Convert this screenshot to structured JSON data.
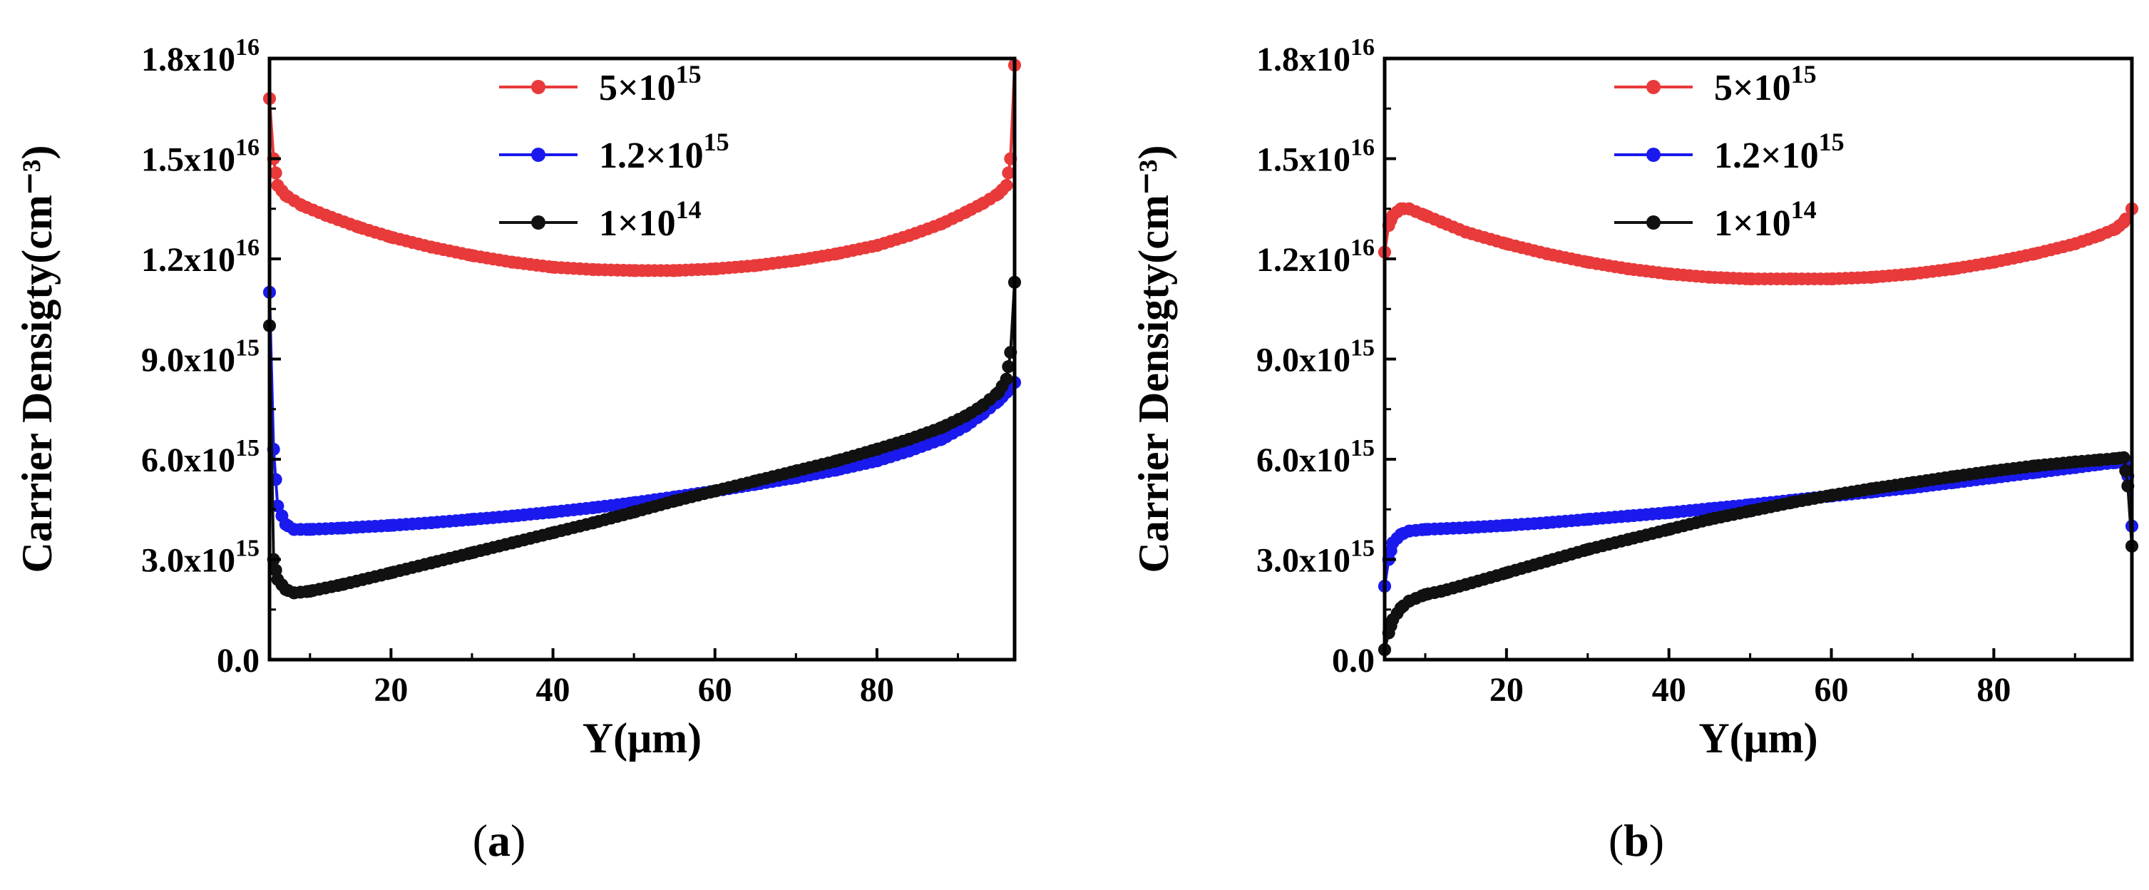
{
  "chart_data": [
    {
      "type": "scatter",
      "panel_label": "a",
      "xlabel": "Y(μm)",
      "ylabel": "Carrier Densigty(cm⁻³)",
      "xlim": [
        5,
        97
      ],
      "ylim": [
        0,
        1.8e+16
      ],
      "xticks": [
        20,
        40,
        60,
        80
      ],
      "yticks": [
        {
          "value": 0,
          "mant": "0.0",
          "exp": ""
        },
        {
          "value": 3000000000000000.0,
          "mant": "3.0x10",
          "exp": "15"
        },
        {
          "value": 6000000000000000.0,
          "mant": "6.0x10",
          "exp": "15"
        },
        {
          "value": 9000000000000000.0,
          "mant": "9.0x10",
          "exp": "15"
        },
        {
          "value": 1.2e+16,
          "mant": "1.2x10",
          "exp": "16"
        },
        {
          "value": 1.5e+16,
          "mant": "1.5x10",
          "exp": "16"
        },
        {
          "value": 1.8e+16,
          "mant": "1.8x10",
          "exp": "16"
        }
      ],
      "legend_position": "top-right",
      "series": [
        {
          "name": "5×10",
          "name_exp": "15",
          "color": "#e83a3a",
          "x": [
            5,
            5.5,
            6,
            7,
            9,
            12,
            16,
            20,
            25,
            30,
            35,
            40,
            45,
            50,
            55,
            60,
            65,
            70,
            75,
            80,
            84,
            88,
            91,
            93,
            95,
            96,
            96.5,
            97
          ],
          "y": [
            1.68e+16,
            1.5e+16,
            1.42e+16,
            1.39e+16,
            1.36e+16,
            1.33e+16,
            1.295e+16,
            1.265e+16,
            1.235e+16,
            1.21e+16,
            1.19e+16,
            1.175e+16,
            1.168e+16,
            1.165e+16,
            1.165e+16,
            1.17e+16,
            1.18e+16,
            1.195e+16,
            1.215e+16,
            1.24e+16,
            1.27e+16,
            1.305e+16,
            1.34e+16,
            1.365e+16,
            1.395e+16,
            1.42e+16,
            1.5e+16,
            1.78e+16
          ]
        },
        {
          "name": "1.2×10",
          "name_exp": "15",
          "color": "#1a1aee",
          "x": [
            5,
            5.5,
            6,
            7,
            8,
            10,
            14,
            20,
            25,
            30,
            35,
            40,
            45,
            50,
            55,
            60,
            65,
            70,
            75,
            80,
            84,
            88,
            91,
            93,
            95,
            96,
            97
          ],
          "y": [
            1.1e+16,
            6300000000000000.0,
            4600000000000000.0,
            4050000000000000.0,
            3900000000000000.0,
            3900000000000000.0,
            3940000000000000.0,
            4020000000000000.0,
            4100000000000000.0,
            4200000000000000.0,
            4300000000000000.0,
            4420000000000000.0,
            4550000000000000.0,
            4700000000000000.0,
            4870000000000000.0,
            5050000000000000.0,
            5250000000000000.0,
            5450000000000000.0,
            5680000000000000.0,
            5950000000000000.0,
            6250000000000000.0,
            6600000000000000.0,
            7000000000000000.0,
            7350000000000000.0,
            7750000000000000.0,
            8000000000000000.0,
            8300000000000000.0
          ]
        },
        {
          "name": "1×10",
          "name_exp": "14",
          "color": "#111111",
          "x": [
            5,
            5.5,
            6,
            7,
            8,
            10,
            14,
            20,
            25,
            30,
            35,
            40,
            45,
            50,
            55,
            60,
            65,
            70,
            75,
            80,
            84,
            88,
            91,
            93,
            95,
            96,
            96.5,
            97
          ],
          "y": [
            1e+16,
            3000000000000000.0,
            2400000000000000.0,
            2100000000000000.0,
            2000000000000000.0,
            2050000000000000.0,
            2250000000000000.0,
            2600000000000000.0,
            2900000000000000.0,
            3200000000000000.0,
            3500000000000000.0,
            3800000000000000.0,
            4100000000000000.0,
            4420000000000000.0,
            4750000000000000.0,
            5050000000000000.0,
            5350000000000000.0,
            5650000000000000.0,
            5950000000000000.0,
            6300000000000000.0,
            6600000000000000.0,
            6950000000000000.0,
            7300000000000000.0,
            7600000000000000.0,
            8000000000000000.0,
            8400000000000000.0,
            9200000000000000.0,
            1.13e+16
          ]
        }
      ]
    },
    {
      "type": "scatter",
      "panel_label": "b",
      "xlabel": "Y(μm)",
      "ylabel": "Carrier Densigty(cm⁻³)",
      "xlim": [
        5,
        97
      ],
      "ylim": [
        0,
        1.8e+16
      ],
      "xticks": [
        20,
        40,
        60,
        80
      ],
      "yticks": [
        {
          "value": 0,
          "mant": "0.0",
          "exp": ""
        },
        {
          "value": 3000000000000000.0,
          "mant": "3.0x10",
          "exp": "15"
        },
        {
          "value": 6000000000000000.0,
          "mant": "6.0x10",
          "exp": "15"
        },
        {
          "value": 9000000000000000.0,
          "mant": "9.0x10",
          "exp": "15"
        },
        {
          "value": 1.2e+16,
          "mant": "1.2x10",
          "exp": "16"
        },
        {
          "value": 1.5e+16,
          "mant": "1.5x10",
          "exp": "16"
        },
        {
          "value": 1.8e+16,
          "mant": "1.8x10",
          "exp": "16"
        }
      ],
      "legend_position": "top-right",
      "series": [
        {
          "name": "5×10",
          "name_exp": "15",
          "color": "#e83a3a",
          "x": [
            5,
            5.5,
            6,
            7,
            8,
            10,
            12,
            15,
            20,
            25,
            30,
            35,
            40,
            45,
            50,
            55,
            60,
            65,
            70,
            75,
            80,
            85,
            90,
            93,
            95,
            96,
            97
          ],
          "y": [
            1.22e+16,
            1.3e+16,
            1.33e+16,
            1.35e+16,
            1.35e+16,
            1.33e+16,
            1.31e+16,
            1.28e+16,
            1.245e+16,
            1.215e+16,
            1.19e+16,
            1.17e+16,
            1.155e+16,
            1.145e+16,
            1.14e+16,
            1.14e+16,
            1.14e+16,
            1.145e+16,
            1.155e+16,
            1.17e+16,
            1.19e+16,
            1.215e+16,
            1.245e+16,
            1.27e+16,
            1.29e+16,
            1.31e+16,
            1.35e+16
          ]
        },
        {
          "name": "1.2×10",
          "name_exp": "15",
          "color": "#1a1aee",
          "x": [
            5,
            5.5,
            6,
            7,
            8,
            10,
            15,
            20,
            25,
            30,
            35,
            40,
            45,
            50,
            55,
            60,
            65,
            70,
            75,
            80,
            85,
            90,
            93,
            95,
            96,
            96.5,
            97
          ],
          "y": [
            2200000000000000.0,
            3000000000000000.0,
            3500000000000000.0,
            3750000000000000.0,
            3850000000000000.0,
            3900000000000000.0,
            3950000000000000.0,
            4020000000000000.0,
            4100000000000000.0,
            4200000000000000.0,
            4300000000000000.0,
            4400000000000000.0,
            4520000000000000.0,
            4640000000000000.0,
            4770000000000000.0,
            4900000000000000.0,
            5020000000000000.0,
            5150000000000000.0,
            5300000000000000.0,
            5450000000000000.0,
            5600000000000000.0,
            5750000000000000.0,
            5850000000000000.0,
            5900000000000000.0,
            5950000000000000.0,
            5500000000000000.0,
            4000000000000000.0
          ]
        },
        {
          "name": "1×10",
          "name_exp": "14",
          "color": "#111111",
          "x": [
            5,
            5.5,
            6,
            7,
            8,
            10,
            12,
            15,
            20,
            25,
            30,
            35,
            40,
            45,
            50,
            55,
            60,
            65,
            70,
            75,
            80,
            85,
            90,
            93,
            95,
            96,
            96.5,
            97
          ],
          "y": [
            300000000000000.0,
            800000000000000.0,
            1200000000000000.0,
            1550000000000000.0,
            1750000000000000.0,
            1950000000000000.0,
            2050000000000000.0,
            2250000000000000.0,
            2600000000000000.0,
            2950000000000000.0,
            3300000000000000.0,
            3600000000000000.0,
            3900000000000000.0,
            4200000000000000.0,
            4450000000000000.0,
            4700000000000000.0,
            4920000000000000.0,
            5120000000000000.0,
            5300000000000000.0,
            5480000000000000.0,
            5650000000000000.0,
            5800000000000000.0,
            5920000000000000.0,
            5980000000000000.0,
            6020000000000000.0,
            6050000000000000.0,
            5200000000000000.0,
            3400000000000000.0
          ]
        }
      ]
    }
  ]
}
